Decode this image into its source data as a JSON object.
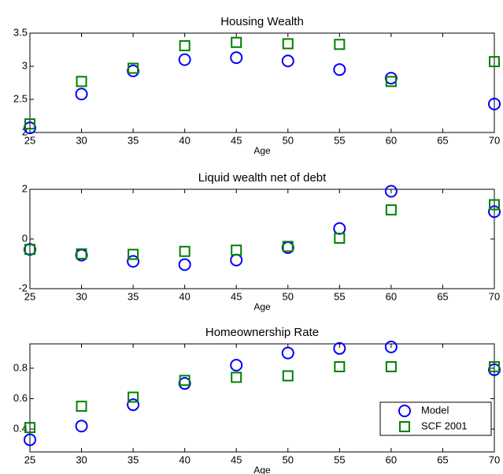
{
  "chart_data": [
    {
      "type": "scatter",
      "title": "Housing Wealth",
      "x_label": "Age",
      "x": [
        25,
        30,
        35,
        40,
        45,
        50,
        55,
        60,
        70
      ],
      "series": [
        {
          "name": "Model",
          "color": "#0000ff",
          "marker": "circle",
          "values": [
            2.07,
            2.58,
            2.93,
            3.1,
            3.13,
            3.08,
            2.95,
            2.82,
            2.43
          ]
        },
        {
          "name": "SCF 2001",
          "color": "#008000",
          "marker": "square",
          "values": [
            2.13,
            2.77,
            2.97,
            3.31,
            3.36,
            3.34,
            3.33,
            2.77,
            3.07
          ]
        }
      ],
      "xlim": [
        25,
        70
      ],
      "xticks": [
        25,
        30,
        35,
        40,
        45,
        50,
        55,
        60,
        65,
        70
      ],
      "ylim": [
        2,
        3.5
      ],
      "yticks": [
        2,
        2.5,
        3,
        3.5
      ]
    },
    {
      "type": "scatter",
      "title": "Liquid wealth net of debt",
      "x_label": "Age",
      "x": [
        25,
        30,
        35,
        40,
        45,
        50,
        55,
        60,
        70
      ],
      "series": [
        {
          "name": "Model",
          "color": "#0000ff",
          "marker": "circle",
          "values": [
            -0.42,
            -0.65,
            -0.9,
            -1.03,
            -0.85,
            -0.35,
            0.42,
            1.92,
            1.1
          ]
        },
        {
          "name": "SCF 2001",
          "color": "#008000",
          "marker": "square",
          "values": [
            -0.42,
            -0.6,
            -0.62,
            -0.5,
            -0.45,
            -0.3,
            0.03,
            1.17,
            1.38
          ]
        }
      ],
      "xlim": [
        25,
        70
      ],
      "xticks": [
        25,
        30,
        35,
        40,
        45,
        50,
        55,
        60,
        65,
        70
      ],
      "ylim": [
        -2,
        2
      ],
      "yticks": [
        -2,
        0,
        2
      ]
    },
    {
      "type": "scatter",
      "title": "Homeownership Rate",
      "x_label": "Age",
      "x": [
        25,
        30,
        35,
        40,
        45,
        50,
        55,
        60,
        70
      ],
      "series": [
        {
          "name": "Model",
          "color": "#0000ff",
          "marker": "circle",
          "values": [
            0.33,
            0.42,
            0.56,
            0.7,
            0.82,
            0.9,
            0.93,
            0.94,
            0.79
          ]
        },
        {
          "name": "SCF 2001",
          "color": "#008000",
          "marker": "square",
          "values": [
            0.41,
            0.55,
            0.61,
            0.72,
            0.74,
            0.75,
            0.81,
            0.81,
            0.81
          ]
        }
      ],
      "xlim": [
        25,
        70
      ],
      "xticks": [
        25,
        30,
        35,
        40,
        45,
        50,
        55,
        60,
        65,
        70
      ],
      "ylim": [
        0.25,
        0.96
      ],
      "yticks": [
        0.4,
        0.6,
        0.8
      ],
      "legend": "lower right"
    }
  ]
}
